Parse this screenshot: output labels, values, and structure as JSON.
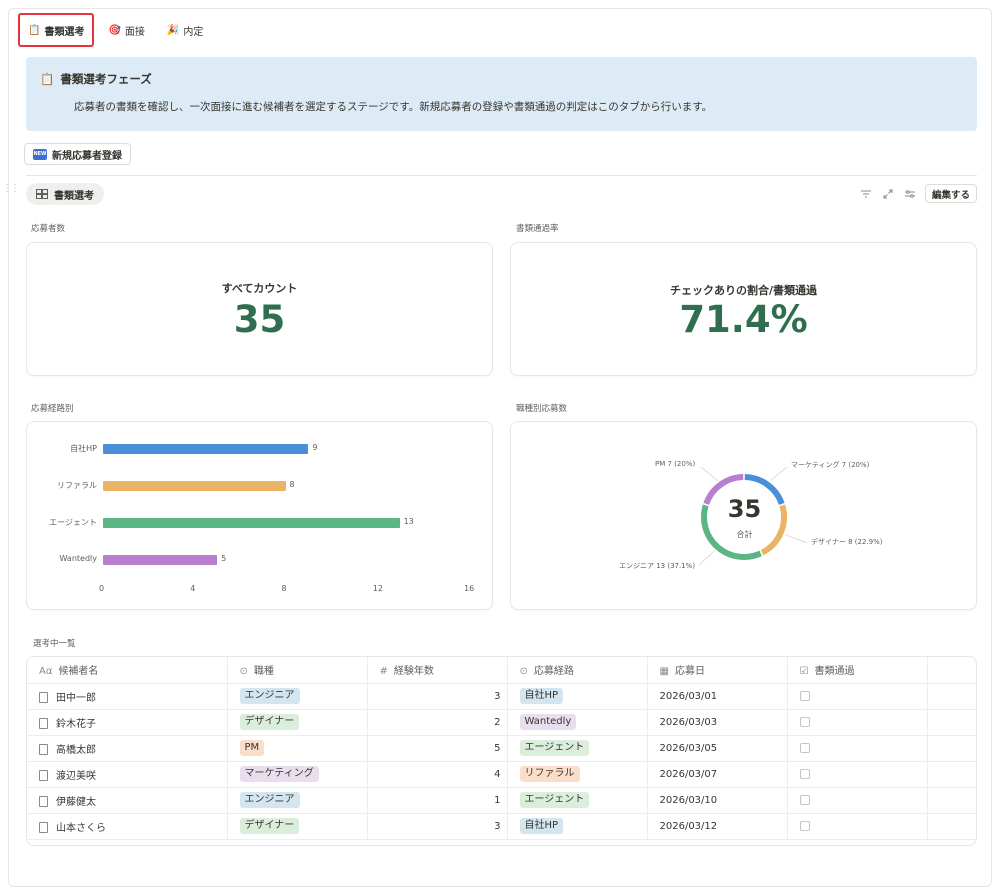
{
  "tabs": [
    {
      "icon": "📋",
      "label": "書類選考",
      "active": true
    },
    {
      "icon": "🎯",
      "label": "面接",
      "active": false
    },
    {
      "icon": "🎉",
      "label": "内定",
      "active": false
    }
  ],
  "callout": {
    "icon": "📋",
    "title": "書類選考フェーズ",
    "body": "応募者の書類を確認し、一次面接に進む候補者を選定するステージです。新規応募者の登録や書類通過の判定はこのタブから行います。",
    "bg_color": "#ddebf6"
  },
  "new_button": {
    "badge": "NEW",
    "label": "新規応募者登録"
  },
  "view": {
    "icon": "gallery-icon",
    "label": "書類選考"
  },
  "toolbar": {
    "edit_label": "編集する",
    "icons": [
      "filter-icon",
      "expand-icon",
      "settings-icon"
    ]
  },
  "metrics": [
    {
      "section": "応募者数",
      "title": "すべてカウント",
      "value": "35"
    },
    {
      "section": "書類通過率",
      "title": "チェックありの割合/書類通過",
      "value": "71.4%"
    }
  ],
  "accent_green": "#2f6f4f",
  "bar_section": "応募経路別",
  "donut_section": "職種別応募数",
  "charts": {
    "bar": {
      "type": "bar",
      "orientation": "horizontal",
      "categories": [
        "自社HP",
        "リファラル",
        "エージェント",
        "Wantedly"
      ],
      "values": [
        9,
        8,
        13,
        5
      ],
      "colors": [
        "#4a90d9",
        "#e9b463",
        "#5bb585",
        "#b87fce"
      ],
      "xlim": [
        0,
        16
      ],
      "xticks": [
        "0",
        "4",
        "8",
        "12",
        "16"
      ]
    },
    "donut": {
      "type": "pie",
      "center_value": "35",
      "center_label": "合計",
      "slices": [
        {
          "label": "マーケティング",
          "value": 7,
          "text": "マーケティング 7 (20%)",
          "color": "#4a90d9"
        },
        {
          "label": "デザイナー",
          "value": 8,
          "text": "デザイナー 8 (22.9%)",
          "color": "#e9b463"
        },
        {
          "label": "エンジニア",
          "value": 13,
          "text": "エンジニア 13 (37.1%)",
          "color": "#5bb585"
        },
        {
          "label": "PM",
          "value": 7,
          "text": "PM 7 (20%)",
          "color": "#b87fce"
        }
      ]
    }
  },
  "chart_data": [
    {
      "type": "bar",
      "categories": [
        "自社HP",
        "リファラル",
        "エージェント",
        "Wantedly"
      ],
      "values": [
        9,
        8,
        13,
        5
      ],
      "title": "応募経路別",
      "xlim": [
        0,
        16
      ],
      "xticks": [
        0,
        4,
        8,
        12,
        16
      ]
    },
    {
      "type": "pie",
      "title": "職種別応募数",
      "categories": [
        "マーケティング",
        "デザイナー",
        "エンジニア",
        "PM"
      ],
      "values": [
        7,
        8,
        13,
        7
      ],
      "total": 35
    }
  ],
  "table_section": "選考中一覧",
  "table": {
    "columns": [
      {
        "icon": "Aα",
        "label": "候補者名"
      },
      {
        "icon": "⊙",
        "label": "職種"
      },
      {
        "icon": "#",
        "label": "経験年数"
      },
      {
        "icon": "⊙",
        "label": "応募経路"
      },
      {
        "icon": "▦",
        "label": "応募日"
      },
      {
        "icon": "☑",
        "label": "書類通過"
      }
    ],
    "rows": [
      {
        "name": "田中一郎",
        "role": "エンジニア",
        "years": "3",
        "source": "自社HP",
        "date": "2026/03/01",
        "passed": false
      },
      {
        "name": "鈴木花子",
        "role": "デザイナー",
        "years": "2",
        "source": "Wantedly",
        "date": "2026/03/03",
        "passed": false
      },
      {
        "name": "高橋太郎",
        "role": "PM",
        "years": "5",
        "source": "エージェント",
        "date": "2026/03/05",
        "passed": false
      },
      {
        "name": "渡辺美咲",
        "role": "マーケティング",
        "years": "4",
        "source": "リファラル",
        "date": "2026/03/07",
        "passed": false
      },
      {
        "name": "伊藤健太",
        "role": "エンジニア",
        "years": "1",
        "source": "エージェント",
        "date": "2026/03/10",
        "passed": false
      },
      {
        "name": "山本さくら",
        "role": "デザイナー",
        "years": "3",
        "source": "自社HP",
        "date": "2026/03/12",
        "passed": false
      }
    ],
    "tag_colors": {
      "エンジニア": "#d3e5ef",
      "デザイナー": "#dbeddb",
      "PM": "#fadec9",
      "マーケティング": "#e8deee",
      "自社HP": "#d3e5ef",
      "Wantedly": "#e8deee",
      "エージェント": "#dbeddb",
      "リファラル": "#fadec9"
    }
  }
}
